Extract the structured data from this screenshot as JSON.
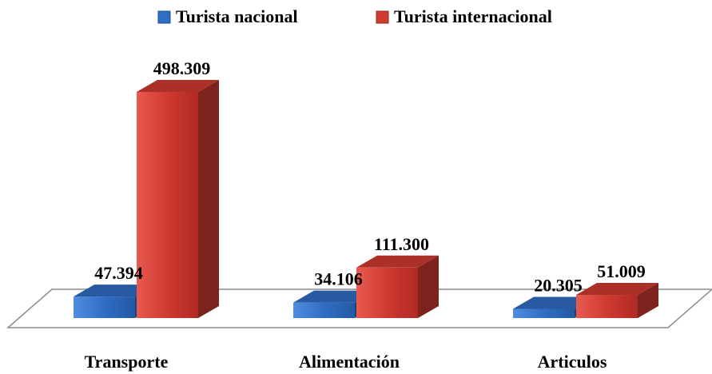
{
  "chart_data": {
    "type": "bar3d",
    "categories": [
      "Transporte",
      "Alimentación",
      "Articulos"
    ],
    "series": [
      {
        "name": "Turista nacional",
        "color": "#2f6ec4",
        "values": [
          47394,
          34106,
          20305
        ],
        "value_labels": [
          "47.394",
          "34.106",
          "20.305"
        ]
      },
      {
        "name": "Turista internacional",
        "color": "#cf3a31",
        "values": [
          498309,
          111300,
          51009
        ],
        "value_labels": [
          "498.309",
          "111.300",
          "51.009"
        ]
      }
    ],
    "legend": "top"
  }
}
